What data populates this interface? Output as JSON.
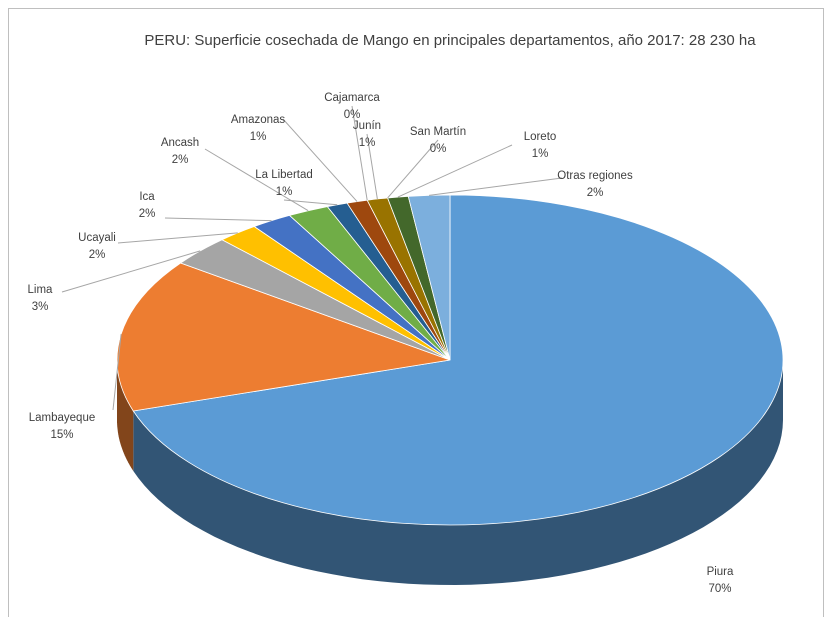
{
  "chart_data": {
    "type": "pie3d",
    "title": "PERU: Superficie cosechada de Mango en principales departamentos, año 2017: 28 230 ha",
    "categories": [
      "Piura",
      "Lambayeque",
      "Lima",
      "Ucayali",
      "Ica",
      "Ancash",
      "La Libertad",
      "Amazonas",
      "Cajamarca",
      "Junín",
      "San Martín",
      "Loreto",
      "Otras regiones"
    ],
    "values": [
      70,
      15,
      3,
      2,
      2,
      2,
      1,
      1,
      0,
      1,
      0,
      1,
      2
    ],
    "value_labels": [
      "70%",
      "15%",
      "3%",
      "2%",
      "2%",
      "2%",
      "1%",
      "1%",
      "0%",
      "1%",
      "0%",
      "1%",
      "2%"
    ],
    "colors": [
      "#5b9bd5",
      "#ed7d31",
      "#a5a5a5",
      "#ffc000",
      "#4472c4",
      "#70ad47",
      "#255e91",
      "#9e480e",
      "#636363",
      "#997300",
      "#264478",
      "#43682b",
      "#7cafdd"
    ]
  }
}
